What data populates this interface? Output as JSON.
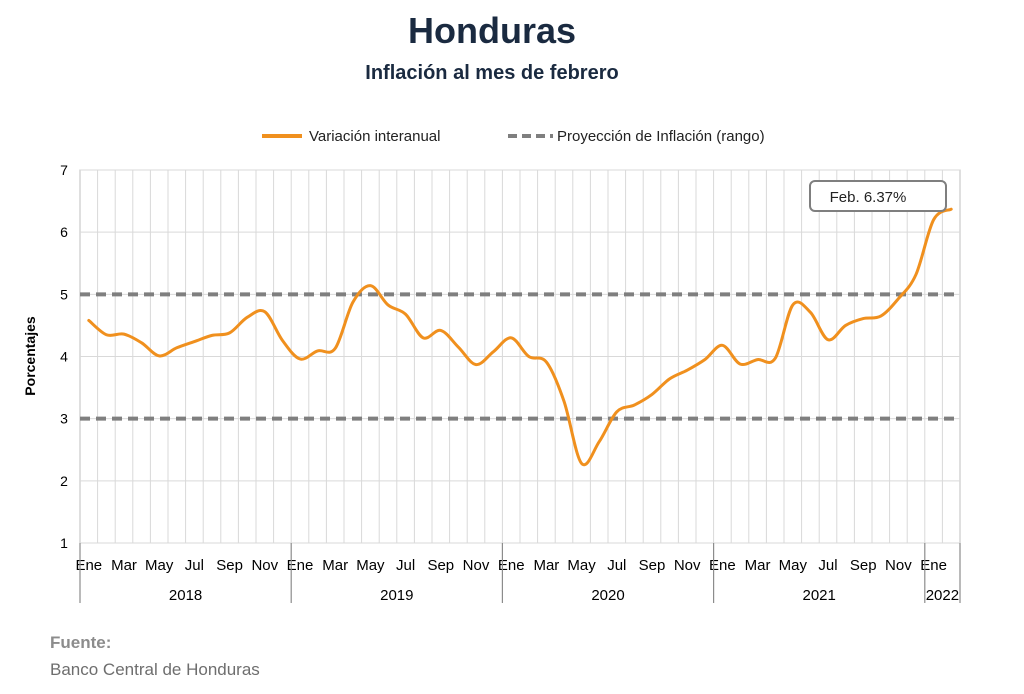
{
  "header": {
    "title": "Honduras",
    "subtitle": "Inflación al mes de febrero"
  },
  "source": {
    "label": "Fuente:",
    "text": "Banco Central de Honduras"
  },
  "chart_data": {
    "type": "line",
    "ylabel": "Porcentajes",
    "ylim": [
      1,
      7
    ],
    "yticks": [
      1,
      2,
      3,
      4,
      5,
      6,
      7
    ],
    "grid": true,
    "legend_position": "top",
    "x_tick_labels": [
      "Ene",
      "Mar",
      "May",
      "Jul",
      "Sep",
      "Nov",
      "Ene",
      "Mar",
      "May",
      "Jul",
      "Sep",
      "Nov",
      "Ene",
      "Mar",
      "May",
      "Jul",
      "Sep",
      "Nov",
      "Ene",
      "Mar",
      "May",
      "Jul",
      "Sep",
      "Nov",
      "Ene"
    ],
    "year_labels": [
      "2018",
      "2019",
      "2020",
      "2021",
      "2022"
    ],
    "series": [
      {
        "name": "Variación interanual",
        "color": "#f0901e",
        "style": "solid",
        "values": [
          4.58,
          4.35,
          4.36,
          4.22,
          4.01,
          4.14,
          4.24,
          4.34,
          4.38,
          4.63,
          4.72,
          4.26,
          3.96,
          4.09,
          4.13,
          4.87,
          5.14,
          4.83,
          4.68,
          4.3,
          4.42,
          4.15,
          3.87,
          4.08,
          4.3,
          4.0,
          3.91,
          3.28,
          2.28,
          2.63,
          3.11,
          3.22,
          3.39,
          3.64,
          3.78,
          3.95,
          4.18,
          3.88,
          3.95,
          3.97,
          4.83,
          4.71,
          4.27,
          4.5,
          4.61,
          4.65,
          4.93,
          5.32,
          6.2,
          6.37
        ]
      },
      {
        "name": "Proyección de Inflación (rango)",
        "color": "#7f7f7f",
        "style": "dashed",
        "band": [
          3,
          5
        ]
      }
    ],
    "annotation": {
      "text": "Feb. 6.37%",
      "point_index": 49
    }
  }
}
